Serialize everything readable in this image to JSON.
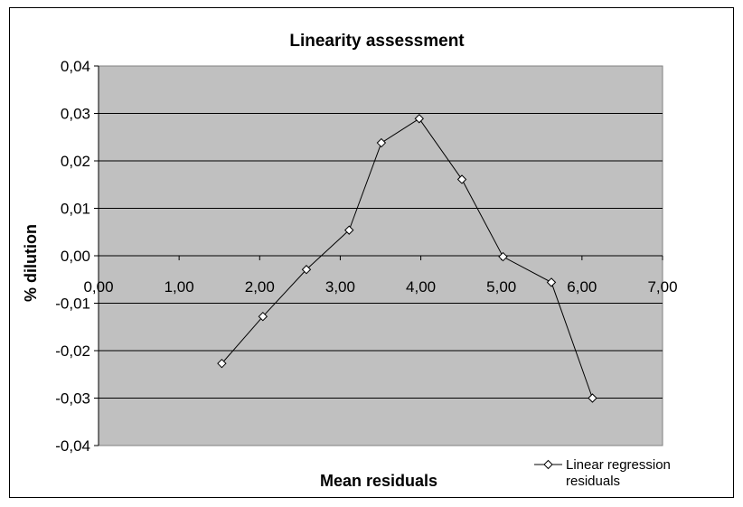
{
  "chart_data": {
    "type": "scatter",
    "title": "Linearity assessment",
    "xlabel": "Mean residuals",
    "ylabel": "% dilution",
    "xlim": [
      0,
      7
    ],
    "ylim": [
      -0.04,
      0.04
    ],
    "x_ticks": [
      "0,00",
      "1,00",
      "2,00",
      "3,00",
      "4,00",
      "5,00",
      "6,00",
      "7,00"
    ],
    "y_ticks": [
      "0,04",
      "0,03",
      "0,02",
      "0,01",
      "0,00",
      "-0,01",
      "-0,02",
      "-0,03",
      "-0,04"
    ],
    "grid": true,
    "legend_position": "bottom-right",
    "plot_background": "#c0c0c0",
    "line_color": "#000000",
    "series": [
      {
        "name": "Linear regression residuals",
        "marker": "diamond",
        "x": [
          1.53,
          2.04,
          2.58,
          3.11,
          3.51,
          3.98,
          4.51,
          5.02,
          5.62,
          6.13
        ],
        "y": [
          -0.0227,
          -0.0128,
          -0.0029,
          0.0054,
          0.0238,
          0.0289,
          0.0161,
          -0.0002,
          -0.0056,
          -0.03
        ]
      }
    ]
  }
}
